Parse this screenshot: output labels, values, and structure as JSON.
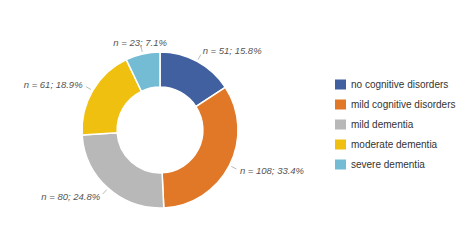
{
  "chart_data": {
    "type": "donut",
    "categories": [
      "no cognitive disorders",
      "mild cognitive disorders",
      "mild dementia",
      "moderate dementia",
      "severe dementia"
    ],
    "values": [
      51,
      108,
      80,
      61,
      23
    ],
    "value_labels": [
      "n = 51; 15.8%",
      "n = 108; 33.4%",
      "n = 80; 24.8%",
      "n = 61; 18.9%",
      "n = 23; 7.1%"
    ],
    "colors": [
      "#4060a0",
      "#e07828",
      "#b8b8b8",
      "#f0c010",
      "#74bcd4"
    ],
    "data_labels": true,
    "legend": "right"
  }
}
